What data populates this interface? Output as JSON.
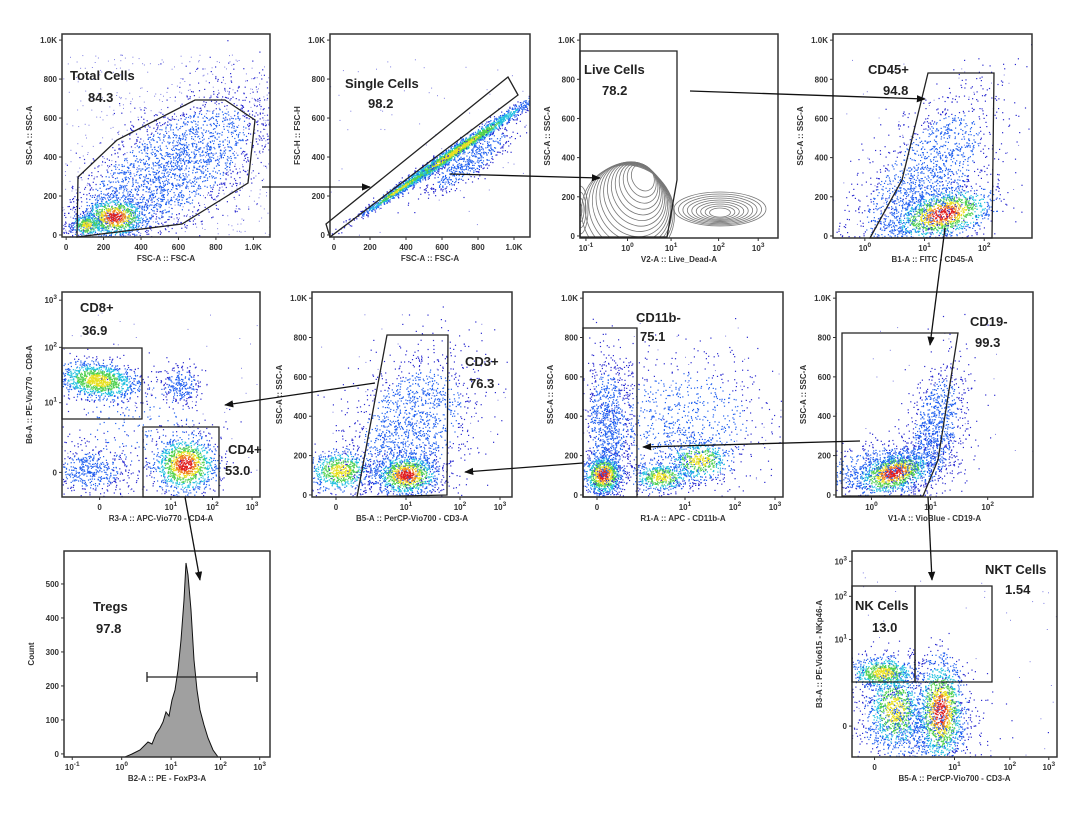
{
  "figure": "flow-cytometry-gating-strategy",
  "colors": {
    "frame": "#333333",
    "gate": "#222222",
    "arrow": "#111111",
    "histogram_fill": "#a0a0a0",
    "contour": "#777777",
    "density": [
      "#2a2ad0",
      "#2060f0",
      "#20c0e0",
      "#50d050",
      "#e8e020",
      "#f08020",
      "#e02020"
    ]
  },
  "plots": [
    {
      "gates": [
        {
          "name": "Total Cells",
          "value": "84.3"
        }
      ],
      "x_axis": {
        "label": "FSC-A :: FSC-A",
        "ticks": [
          {
            "base": "0"
          },
          {
            "base": "200"
          },
          {
            "base": "400"
          },
          {
            "base": "600"
          },
          {
            "base": "800"
          },
          {
            "base": "1.0K"
          }
        ]
      },
      "y_axis": {
        "label": "SSC-A :: SSC-A",
        "ticks": [
          {
            "base": "0"
          },
          {
            "base": "200"
          },
          {
            "base": "400"
          },
          {
            "base": "600"
          },
          {
            "base": "800"
          },
          {
            "base": "1.0K"
          }
        ]
      }
    },
    {
      "gates": [
        {
          "name": "Single Cells",
          "value": "98.2"
        }
      ],
      "x_axis": {
        "label": "FSC-A :: FSC-A",
        "ticks": [
          {
            "base": "0"
          },
          {
            "base": "200"
          },
          {
            "base": "400"
          },
          {
            "base": "600"
          },
          {
            "base": "800"
          },
          {
            "base": "1.0K"
          }
        ]
      },
      "y_axis": {
        "label": "FSC-H :: FSC-H",
        "ticks": [
          {
            "base": "0"
          },
          {
            "base": "200"
          },
          {
            "base": "400"
          },
          {
            "base": "600"
          },
          {
            "base": "800"
          },
          {
            "base": "1.0K"
          }
        ]
      }
    },
    {
      "gates": [
        {
          "name": "Live Cells",
          "value": "78.2"
        }
      ],
      "x_axis": {
        "label": "V2-A :: Live_Dead-A",
        "ticks": [
          {
            "base": "10",
            "exp": "-1"
          },
          {
            "base": "10",
            "exp": "0"
          },
          {
            "base": "10",
            "exp": "1"
          },
          {
            "base": "10",
            "exp": "2"
          },
          {
            "base": "10",
            "exp": "3"
          }
        ]
      },
      "y_axis": {
        "label": "SSC-A :: SSC-A",
        "ticks": [
          {
            "base": "0"
          },
          {
            "base": "200"
          },
          {
            "base": "400"
          },
          {
            "base": "600"
          },
          {
            "base": "800"
          },
          {
            "base": "1.0K"
          }
        ]
      }
    },
    {
      "gates": [
        {
          "name": "CD45+",
          "value": "94.8"
        }
      ],
      "x_axis": {
        "label": "B1-A :: FITC - CD45-A",
        "ticks": [
          {
            "base": "10",
            "exp": "0"
          },
          {
            "base": "10",
            "exp": "1"
          },
          {
            "base": "10",
            "exp": "2"
          }
        ]
      },
      "y_axis": {
        "label": "SSC-A :: SSC-A",
        "ticks": [
          {
            "base": "0"
          },
          {
            "base": "200"
          },
          {
            "base": "400"
          },
          {
            "base": "600"
          },
          {
            "base": "800"
          },
          {
            "base": "1.0K"
          }
        ]
      }
    },
    {
      "gates": [
        {
          "name": "CD8+",
          "value": "36.9"
        },
        {
          "name": "CD4+",
          "value": "53.0"
        }
      ],
      "x_axis": {
        "label": "R3-A :: APC-Vio770 - CD4-A",
        "ticks": [
          {
            "base": "0"
          },
          {
            "base": "10",
            "exp": "1"
          },
          {
            "base": "10",
            "exp": "2"
          },
          {
            "base": "10",
            "exp": "3"
          }
        ]
      },
      "y_axis": {
        "label": "B6-A :: PE-Vio770 - CD8-A",
        "ticks": [
          {
            "base": "0"
          },
          {
            "base": "10",
            "exp": "1"
          },
          {
            "base": "10",
            "exp": "2"
          },
          {
            "base": "10",
            "exp": "3"
          }
        ]
      }
    },
    {
      "gates": [
        {
          "name": "CD3+",
          "value": "76.3"
        }
      ],
      "x_axis": {
        "label": "B5-A :: PerCP-Vio700 - CD3-A",
        "ticks": [
          {
            "base": "0"
          },
          {
            "base": "10",
            "exp": "1"
          },
          {
            "base": "10",
            "exp": "2"
          },
          {
            "base": "10",
            "exp": "3"
          }
        ]
      },
      "y_axis": {
        "label": "SSC-A :: SSC-A",
        "ticks": [
          {
            "base": "0"
          },
          {
            "base": "200"
          },
          {
            "base": "400"
          },
          {
            "base": "600"
          },
          {
            "base": "800"
          },
          {
            "base": "1.0K"
          }
        ]
      }
    },
    {
      "gates": [
        {
          "name": "CD11b-",
          "value": "75.1"
        }
      ],
      "x_axis": {
        "label": "R1-A :: APC - CD11b-A",
        "ticks": [
          {
            "base": "0"
          },
          {
            "base": "10",
            "exp": "1"
          },
          {
            "base": "10",
            "exp": "2"
          },
          {
            "base": "10",
            "exp": "3"
          }
        ]
      },
      "y_axis": {
        "label": "SSC-A :: SSC-A",
        "ticks": [
          {
            "base": "0"
          },
          {
            "base": "200"
          },
          {
            "base": "400"
          },
          {
            "base": "600"
          },
          {
            "base": "800"
          },
          {
            "base": "1.0K"
          }
        ]
      }
    },
    {
      "gates": [
        {
          "name": "CD19-",
          "value": "99.3"
        }
      ],
      "x_axis": {
        "label": "V1-A :: VioBlue - CD19-A",
        "ticks": [
          {
            "base": "10",
            "exp": "0"
          },
          {
            "base": "10",
            "exp": "1"
          },
          {
            "base": "10",
            "exp": "2"
          }
        ]
      },
      "y_axis": {
        "label": "SSC-A :: SSC-A",
        "ticks": [
          {
            "base": "0"
          },
          {
            "base": "200"
          },
          {
            "base": "400"
          },
          {
            "base": "600"
          },
          {
            "base": "800"
          },
          {
            "base": "1.0K"
          }
        ]
      }
    },
    {
      "gates": [
        {
          "name": "Tregs",
          "value": "97.8"
        }
      ],
      "x_axis": {
        "label": "B2-A :: PE - FoxP3-A",
        "ticks": [
          {
            "base": "10",
            "exp": "-1"
          },
          {
            "base": "10",
            "exp": "0"
          },
          {
            "base": "10",
            "exp": "1"
          },
          {
            "base": "10",
            "exp": "2"
          },
          {
            "base": "10",
            "exp": "3"
          }
        ]
      },
      "y_axis": {
        "label": "Count",
        "ticks": [
          {
            "base": "0"
          },
          {
            "base": "100"
          },
          {
            "base": "200"
          },
          {
            "base": "300"
          },
          {
            "base": "400"
          },
          {
            "base": "500"
          }
        ]
      }
    },
    {
      "gates": [
        {
          "name": "NKT Cells",
          "value": "1.54"
        },
        {
          "name": "NK Cells",
          "value": "13.0"
        }
      ],
      "x_axis": {
        "label": "B5-A :: PerCP-Vio700 - CD3-A",
        "ticks": [
          {
            "base": "0"
          },
          {
            "base": "10",
            "exp": "1"
          },
          {
            "base": "10",
            "exp": "2"
          },
          {
            "base": "10",
            "exp": "3"
          }
        ]
      },
      "y_axis": {
        "label": "B3-A :: PE-Vio615 - NKp46-A",
        "ticks": [
          {
            "base": "0"
          },
          {
            "base": "10",
            "exp": "1"
          },
          {
            "base": "10",
            "exp": "2"
          },
          {
            "base": "10",
            "exp": "3"
          }
        ]
      }
    }
  ]
}
